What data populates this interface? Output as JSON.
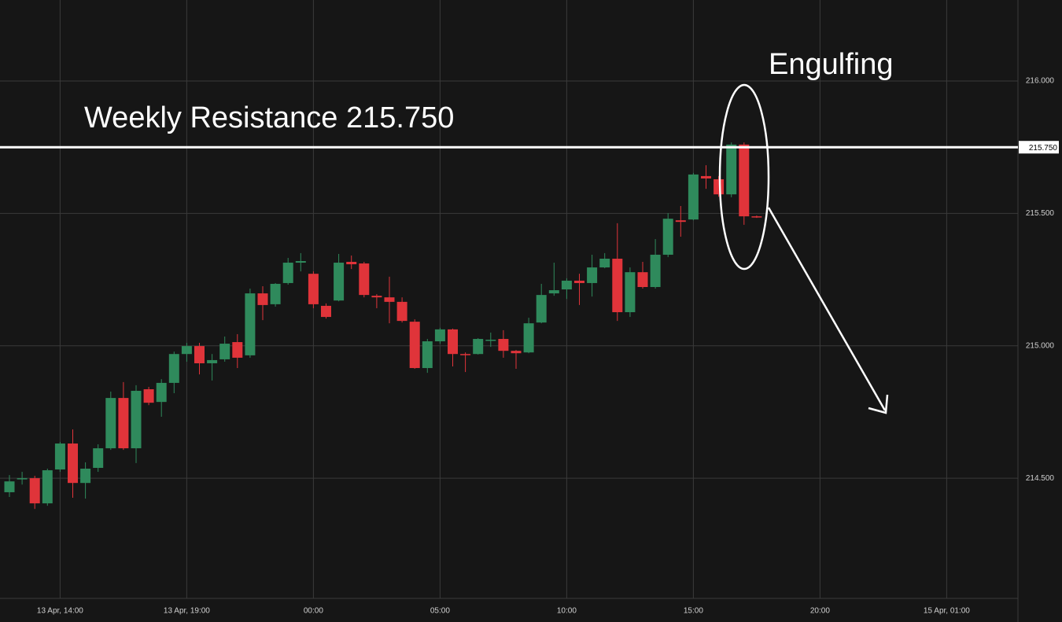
{
  "chart_data": {
    "type": "candlestick",
    "categories": [
      null,
      null,
      null,
      null,
      "13 Apr, 14:00",
      null,
      null,
      null,
      null,
      null,
      null,
      null,
      null,
      null,
      "13 Apr, 19:00",
      null,
      null,
      null,
      null,
      null,
      null,
      null,
      null,
      null,
      "00:00",
      null,
      null,
      null,
      null,
      null,
      null,
      null,
      null,
      null,
      "05:00",
      null,
      null,
      null,
      null,
      null,
      null,
      null,
      null,
      null,
      "10:00",
      null,
      null,
      null,
      null,
      null,
      null,
      null,
      null,
      null,
      "15:00",
      null,
      null,
      null,
      null,
      null,
      null,
      null,
      null,
      null,
      "20:00",
      null,
      null,
      null,
      null,
      null,
      null,
      null,
      null,
      null,
      "15 Apr, 01:00",
      null,
      null,
      null,
      null,
      null
    ],
    "open": [
      214.447,
      214.497,
      214.5,
      214.405,
      214.533,
      214.631,
      214.482,
      214.539,
      214.613,
      214.803,
      214.613,
      214.836,
      214.788,
      214.86,
      214.969,
      214.999,
      214.934,
      214.949,
      215.014,
      214.964,
      215.198,
      215.157,
      215.237,
      215.314,
      215.272,
      215.151,
      215.171,
      215.317,
      215.311,
      215.189,
      215.183,
      215.166,
      215.091,
      214.916,
      215.017,
      215.062,
      214.969,
      214.969,
      215.023,
      215.026,
      214.981,
      214.975,
      215.088,
      215.198,
      215.213,
      215.246,
      215.237,
      215.296,
      215.329,
      215.127,
      215.278,
      215.222,
      215.344,
      215.474,
      215.477,
      215.641,
      215.629,
      215.572,
      215.76,
      215.489,
      null,
      null,
      null,
      null,
      null,
      null,
      null,
      null,
      null,
      null,
      null,
      null,
      null,
      null,
      null,
      null,
      null,
      null,
      null,
      null
    ],
    "high": [
      214.512,
      214.524,
      214.509,
      214.536,
      214.637,
      214.684,
      214.56,
      214.628,
      214.827,
      214.863,
      214.851,
      214.845,
      214.874,
      214.978,
      215.011,
      215.011,
      214.969,
      215.035,
      215.044,
      215.216,
      215.225,
      215.237,
      215.332,
      215.35,
      215.281,
      215.16,
      215.347,
      215.341,
      215.317,
      215.195,
      215.261,
      215.183,
      215.1,
      215.026,
      215.068,
      215.065,
      214.975,
      215.029,
      215.05,
      215.059,
      214.984,
      215.106,
      215.234,
      215.314,
      215.255,
      215.272,
      215.344,
      215.35,
      215.463,
      215.296,
      215.317,
      215.403,
      215.501,
      215.528,
      215.653,
      215.682,
      215.641,
      215.768,
      215.768,
      215.492,
      null,
      null,
      null,
      null,
      null,
      null,
      null,
      null,
      null,
      null,
      null,
      null,
      null,
      null,
      null,
      null,
      null,
      null,
      null,
      null
    ],
    "low": [
      214.429,
      214.476,
      214.384,
      214.396,
      214.524,
      214.426,
      214.423,
      214.524,
      214.607,
      214.607,
      214.557,
      214.776,
      214.732,
      214.821,
      214.94,
      214.892,
      214.869,
      214.94,
      214.916,
      214.955,
      215.097,
      215.148,
      215.231,
      215.281,
      215.142,
      215.103,
      215.168,
      215.29,
      215.183,
      215.142,
      215.085,
      215.088,
      214.913,
      214.898,
      215.008,
      214.922,
      214.901,
      214.967,
      214.996,
      214.955,
      214.913,
      214.972,
      215.085,
      215.189,
      215.177,
      215.154,
      215.186,
      215.293,
      215.094,
      215.109,
      215.216,
      215.216,
      215.335,
      215.412,
      215.474,
      215.593,
      215.563,
      215.561,
      215.457,
      215.483,
      null,
      null,
      null,
      null,
      null,
      null,
      null,
      null,
      null,
      null,
      null,
      null,
      null,
      null,
      null,
      null,
      null,
      null,
      null,
      null
    ],
    "close": [
      214.488,
      214.5,
      214.405,
      214.53,
      214.631,
      214.482,
      214.536,
      214.613,
      214.803,
      214.613,
      214.83,
      214.785,
      214.86,
      214.969,
      214.999,
      214.934,
      214.946,
      215.008,
      214.955,
      215.198,
      215.154,
      215.234,
      215.314,
      215.32,
      215.157,
      215.109,
      215.314,
      215.308,
      215.192,
      215.183,
      215.166,
      215.094,
      214.916,
      215.017,
      215.062,
      214.969,
      214.967,
      215.026,
      215.023,
      214.981,
      214.972,
      215.085,
      215.192,
      215.21,
      215.246,
      215.237,
      215.296,
      215.329,
      215.127,
      215.278,
      215.222,
      215.344,
      215.48,
      215.468,
      215.647,
      215.632,
      215.572,
      215.76,
      215.489,
      215.486,
      null,
      null,
      null,
      null,
      null,
      null,
      null,
      null,
      null,
      null,
      null,
      null,
      null,
      null,
      null,
      null,
      null,
      null,
      null,
      null
    ],
    "up_color": "#2f8a5c",
    "down_color": "#e0343a",
    "ylim": [
      214.046,
      216.306
    ],
    "yticks": [
      {
        "value": 214.5,
        "label": "214.500"
      },
      {
        "value": 215,
        "label": "215.000"
      },
      {
        "value": 215.5,
        "label": "215.500"
      },
      {
        "value": 216,
        "label": "216.000"
      }
    ],
    "grid": true,
    "resistance": {
      "value": 215.75,
      "label": "215.750"
    },
    "annotations": [
      {
        "text": "Weekly Resistance 215.750"
      },
      {
        "text": "Engulfing"
      }
    ]
  }
}
